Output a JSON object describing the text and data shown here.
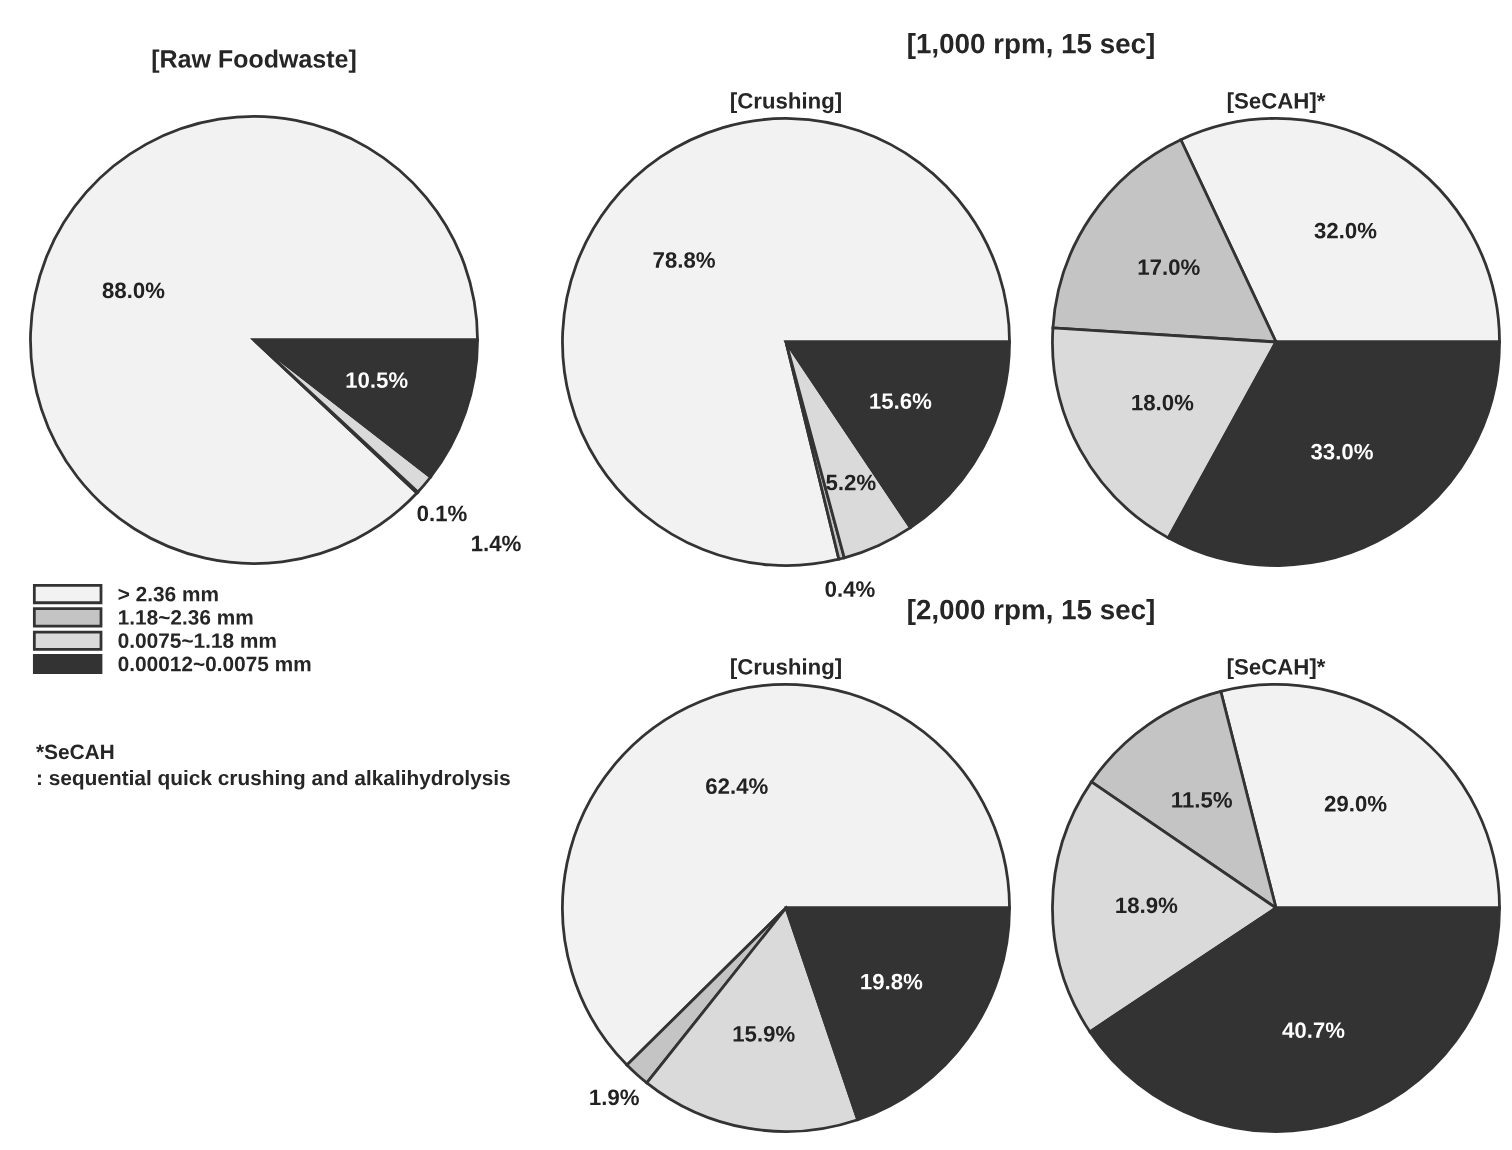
{
  "chart_data": [
    {
      "type": "pie",
      "title": "[Raw Foodwaste]",
      "categories": [
        "> 2.36 mm",
        "1.18~2.36 mm",
        "0.0075~1.18 mm",
        "0.00012~0.0075 mm"
      ],
      "values": [
        88.0,
        0.1,
        1.4,
        10.5
      ],
      "colors": [
        "#f2f2f2",
        "#c4c4c4",
        "#dadada",
        "#333333"
      ],
      "value_labels": [
        "88.0%",
        "0.1%",
        "1.4%",
        "10.5%"
      ],
      "legend": "bottom left",
      "annotations": [
        "*SeCAH",
        ": sequential quick crushing and alkalihydrolysis"
      ]
    },
    {
      "type": "pie",
      "title": "[1,000 rpm, 15 sec]",
      "subtitle": "[Crushing]",
      "values": [
        78.8,
        0.4,
        5.2,
        15.6
      ],
      "colors": [
        "#f2f2f2",
        "#c4c4c4",
        "#dadada",
        "#333333"
      ],
      "value_labels": [
        "78.8%",
        "0.4%",
        "5.2%",
        "15.6%"
      ]
    },
    {
      "type": "pie",
      "title": "[SeCAH]*",
      "values": [
        32.0,
        17.0,
        18.0,
        33.0
      ],
      "colors": [
        "#f2f2f2",
        "#c4c4c4",
        "#dadada",
        "#333333"
      ],
      "value_labels": [
        "32.0%",
        "17.0%",
        "18.0%",
        "33.0%"
      ]
    },
    {
      "type": "pie",
      "title": "[2,000 rpm, 15 sec]",
      "subtitle": "[Crushing]",
      "values": [
        62.4,
        1.9,
        15.9,
        19.8
      ],
      "colors": [
        "#f2f2f2",
        "#c4c4c4",
        "#dadada",
        "#333333"
      ],
      "value_labels": [
        "62.4%",
        "1.9%",
        "15.9%",
        "19.8%"
      ]
    },
    {
      "type": "pie",
      "title": "[SeCAH]*",
      "values": [
        29.0,
        11.5,
        18.9,
        40.7
      ],
      "colors": [
        "#f2f2f2",
        "#c4c4c4",
        "#dadada",
        "#333333"
      ],
      "value_labels": [
        "29.0%",
        "11.5%",
        "18.9%",
        "40.7%"
      ]
    }
  ]
}
